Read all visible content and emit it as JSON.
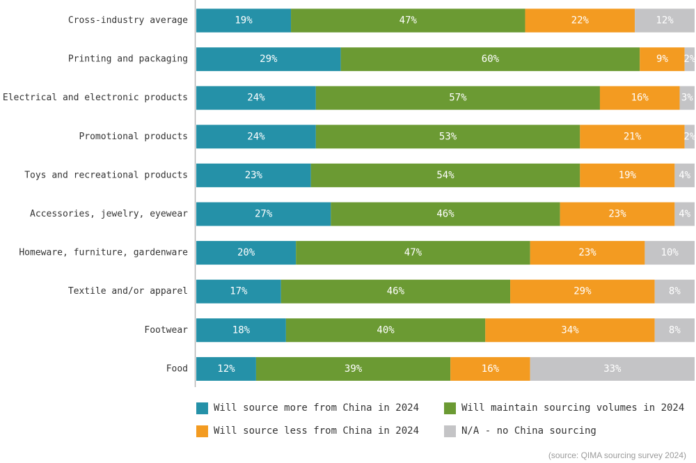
{
  "chart_data": {
    "type": "bar",
    "orientation": "horizontal",
    "stacked": true,
    "categories": [
      "Cross-industry average",
      "Printing and packaging",
      "Electrical and electronic products",
      "Promotional products",
      "Toys and recreational products",
      "Accessories, jewelry, eyewear",
      "Homeware, furniture, gardenware",
      "Textile and/or apparel",
      "Footwear",
      "Food"
    ],
    "series": [
      {
        "name": "Will source more from China in 2024",
        "color": "#2591a8",
        "values": [
          19,
          29,
          24,
          24,
          23,
          27,
          20,
          17,
          18,
          12
        ]
      },
      {
        "name": "Will maintain sourcing volumes in 2024",
        "color": "#6b9a33",
        "values": [
          47,
          60,
          57,
          53,
          54,
          46,
          47,
          46,
          40,
          39
        ]
      },
      {
        "name": "Will source less from China in 2024",
        "color": "#f39b21",
        "values": [
          22,
          9,
          16,
          21,
          19,
          23,
          23,
          29,
          34,
          16
        ]
      },
      {
        "name": "N/A - no China sourcing",
        "color": "#c4c4c6",
        "values": [
          12,
          2,
          3,
          2,
          4,
          4,
          10,
          8,
          8,
          33
        ]
      }
    ],
    "value_suffix": "%",
    "xlim": [
      0,
      100
    ],
    "legend_position": "bottom",
    "grid": false,
    "source": "(source: QIMA sourcing survey 2024)"
  }
}
